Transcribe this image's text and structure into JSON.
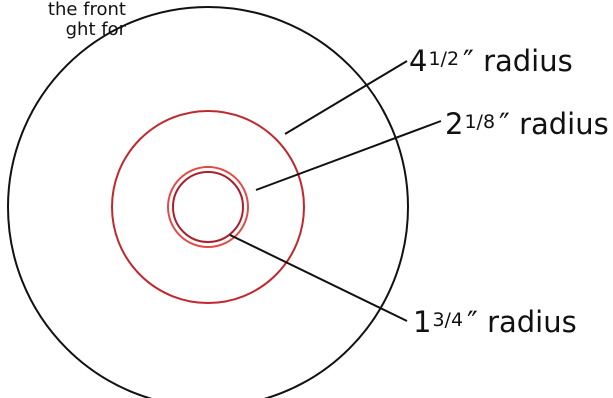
{
  "caption": {
    "line_1": "the front",
    "line_2": "ght for"
  },
  "labels": {
    "outer": {
      "whole": "4",
      "fraction": "1/2",
      "unit": "″ radius"
    },
    "middle": {
      "whole": "2",
      "fraction": "1/8",
      "unit": "″ radius"
    },
    "inner": {
      "whole": "1",
      "fraction": "3/4",
      "unit": "″ radius"
    }
  },
  "colors": {
    "outer_circle": "#111111",
    "middle_circle": "#c0282e",
    "inner_circle_light": "#e24b45",
    "inner_circle_dark": "#a91f2a",
    "leader_line": "#111111"
  }
}
